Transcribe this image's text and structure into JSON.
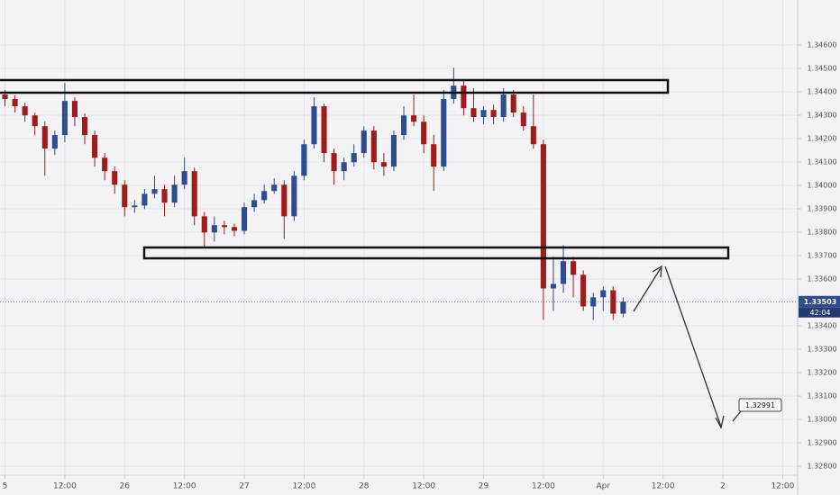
{
  "chart_data": {
    "type": "candlestick",
    "up_color": "#2e4d8f",
    "down_color": "#a01b1b",
    "grid": true,
    "xlim": [
      -1,
      159
    ],
    "ylim": [
      1.32762,
      1.34792
    ],
    "xticks": [
      {
        "value": 0,
        "label": "5"
      },
      {
        "value": 12,
        "label": "12:00"
      },
      {
        "value": 24,
        "label": "26"
      },
      {
        "value": 36,
        "label": "12:00"
      },
      {
        "value": 48,
        "label": "27"
      },
      {
        "value": 60,
        "label": "12:00"
      },
      {
        "value": 72,
        "label": "28"
      },
      {
        "value": 84,
        "label": "12:00"
      },
      {
        "value": 96,
        "label": "29"
      },
      {
        "value": 108,
        "label": "12:00"
      },
      {
        "value": 120,
        "label": "Apr"
      },
      {
        "value": 132,
        "label": "12:00"
      },
      {
        "value": 144,
        "label": "2"
      },
      {
        "value": 156,
        "label": "12:00"
      }
    ],
    "yticks": [
      {
        "value": 1.346,
        "label": "1.34600"
      },
      {
        "value": 1.345,
        "label": "1.34500"
      },
      {
        "value": 1.344,
        "label": "1.34400"
      },
      {
        "value": 1.343,
        "label": "1.34300"
      },
      {
        "value": 1.342,
        "label": "1.34200"
      },
      {
        "value": 1.341,
        "label": "1.34100"
      },
      {
        "value": 1.34,
        "label": "1.34000"
      },
      {
        "value": 1.339,
        "label": "1.33900"
      },
      {
        "value": 1.338,
        "label": "1.33800"
      },
      {
        "value": 1.337,
        "label": "1.33700"
      },
      {
        "value": 1.336,
        "label": "1.33600"
      },
      {
        "value": 1.334,
        "label": "1.33400"
      },
      {
        "value": 1.333,
        "label": "1.33300"
      },
      {
        "value": 1.332,
        "label": "1.33200"
      },
      {
        "value": 1.331,
        "label": "1.33100"
      },
      {
        "value": 1.33,
        "label": "1.33000"
      },
      {
        "value": 1.329,
        "label": "1.32900"
      },
      {
        "value": 1.328,
        "label": "1.32800"
      }
    ],
    "last_price": 1.33503,
    "countdown": "42:04",
    "target_price": 1.32991,
    "x": [
      0,
      2,
      4,
      6,
      8,
      10,
      12,
      14,
      16,
      18,
      20,
      22,
      24,
      26,
      28,
      30,
      32,
      34,
      36,
      38,
      40,
      42,
      44,
      46,
      48,
      50,
      52,
      54,
      56,
      58,
      60,
      62,
      64,
      66,
      68,
      70,
      72,
      74,
      76,
      78,
      80,
      82,
      84,
      86,
      88,
      90,
      92,
      94,
      96,
      98,
      100,
      102,
      104,
      106,
      108,
      110,
      112,
      114,
      116,
      118,
      120,
      122,
      124
    ],
    "open": [
      1.34388,
      1.34369,
      1.34338,
      1.34299,
      1.34253,
      1.34157,
      1.34215,
      1.34361,
      1.34292,
      1.34215,
      1.34118,
      1.34061,
      1.34003,
      1.33907,
      1.33914,
      1.33964,
      1.33984,
      1.33926,
      1.34003,
      1.34061,
      1.33868,
      1.33799,
      1.3383,
      1.33822,
      1.33806,
      1.33907,
      1.33937,
      1.33976,
      1.34003,
      1.33868,
      1.34041,
      1.34176,
      1.34338,
      1.34138,
      1.34061,
      1.34099,
      1.34138,
      1.34234,
      1.34099,
      1.3408,
      1.34215,
      1.34299,
      1.34272,
      1.34176,
      1.3408,
      1.34369,
      1.34426,
      1.3433,
      1.34292,
      1.34322,
      1.34292,
      1.34388,
      1.34311,
      1.34253,
      1.34176,
      1.3356,
      1.33579,
      1.33676,
      1.33618,
      1.33483,
      1.33522,
      1.33552,
      1.33452
    ],
    "high": [
      1.34407,
      1.34384,
      1.34353,
      1.34311,
      1.34272,
      1.34234,
      1.34438,
      1.34376,
      1.34307,
      1.34234,
      1.34138,
      1.3408,
      1.34022,
      1.33937,
      1.33984,
      1.34041,
      1.34003,
      1.34041,
      1.34118,
      1.34076,
      1.33887,
      1.33868,
      1.33849,
      1.33837,
      1.33926,
      1.33964,
      1.34003,
      1.3403,
      1.34022,
      1.34061,
      1.34195,
      1.34376,
      1.34349,
      1.34157,
      1.34118,
      1.34176,
      1.34253,
      1.34253,
      1.34138,
      1.34234,
      1.34338,
      1.34388,
      1.34299,
      1.34215,
      1.34407,
      1.34503,
      1.34453,
      1.34415,
      1.34338,
      1.34345,
      1.34415,
      1.34407,
      1.34338,
      1.34388,
      1.34195,
      1.33695,
      1.33745,
      1.33695,
      1.33637,
      1.33541,
      1.33568,
      1.33568,
      1.33522
    ],
    "low": [
      1.34338,
      1.34311,
      1.34272,
      1.34215,
      1.34041,
      1.3413,
      1.34184,
      1.34253,
      1.34176,
      1.3408,
      1.34022,
      1.33964,
      1.33868,
      1.33883,
      1.33899,
      1.33945,
      1.33868,
      1.33907,
      1.33984,
      1.3383,
      1.33733,
      1.3376,
      1.33791,
      1.33783,
      1.33791,
      1.33887,
      1.33922,
      1.33964,
      1.33772,
      1.33849,
      1.34022,
      1.34157,
      1.34099,
      1.34003,
      1.34022,
      1.3408,
      1.34118,
      1.34068,
      1.34041,
      1.34061,
      1.34195,
      1.34253,
      1.34138,
      1.33976,
      1.34061,
      1.34349,
      1.34299,
      1.34272,
      1.34261,
      1.34261,
      1.34272,
      1.34292,
      1.34234,
      1.34157,
      1.33425,
      1.33464,
      1.33541,
      1.33522,
      1.33464,
      1.33425,
      1.33464,
      1.33425,
      1.33437
    ],
    "close": [
      1.34369,
      1.34338,
      1.34299,
      1.34253,
      1.34157,
      1.34215,
      1.34361,
      1.34292,
      1.34215,
      1.34118,
      1.34061,
      1.34003,
      1.33907,
      1.33914,
      1.33964,
      1.33984,
      1.33926,
      1.34003,
      1.34061,
      1.33868,
      1.33799,
      1.3383,
      1.33822,
      1.33806,
      1.33907,
      1.33937,
      1.33976,
      1.34003,
      1.33868,
      1.34041,
      1.34176,
      1.34338,
      1.34138,
      1.34061,
      1.34099,
      1.34138,
      1.34234,
      1.34099,
      1.3408,
      1.34215,
      1.34299,
      1.34272,
      1.34176,
      1.3408,
      1.34369,
      1.34426,
      1.3433,
      1.34292,
      1.34322,
      1.34292,
      1.34388,
      1.34311,
      1.34253,
      1.34176,
      1.3356,
      1.33579,
      1.33676,
      1.33618,
      1.33483,
      1.33522,
      1.33552,
      1.33452,
      1.33503
    ]
  }
}
